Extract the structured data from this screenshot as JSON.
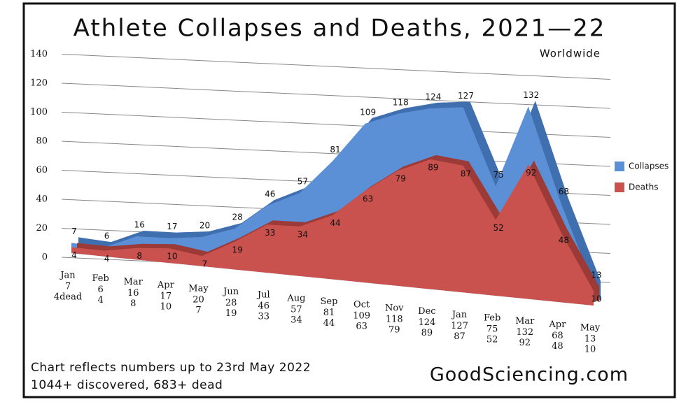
{
  "chart_data": {
    "type": "area",
    "title": "Athlete Collapses and Deaths, 2021—22",
    "subtitle": "Worldwide",
    "annotations": [
      "Chart reflects numbers up to 23rd May 2022",
      "1044+ discovered, 683+ dead",
      "GoodSciencing.com"
    ],
    "categories": [
      "Jan",
      "Feb",
      "Mar",
      "Apr",
      "May",
      "Jun",
      "Jul",
      "Aug",
      "Sep",
      "Oct",
      "Nov",
      "Dec",
      "Jan",
      "Feb",
      "Mar",
      "Apr",
      "May"
    ],
    "series": [
      {
        "name": "Collapses",
        "color": "#5b8fd6",
        "values": [
          7,
          6,
          16,
          17,
          20,
          28,
          46,
          57,
          81,
          109,
          118,
          124,
          127,
          75,
          132,
          68,
          13
        ]
      },
      {
        "name": "Deaths",
        "color": "#c9524e",
        "values": [
          4,
          4,
          8,
          10,
          7,
          19,
          33,
          34,
          44,
          63,
          79,
          89,
          87,
          52,
          92,
          48,
          10
        ],
        "value_labels": [
          "4dead",
          "4",
          "8",
          "10",
          "7",
          "19",
          "33",
          "34",
          "44",
          "63",
          "79",
          "89",
          "87",
          "52",
          "92",
          "48",
          "10"
        ]
      }
    ],
    "ylim": [
      0,
      140
    ],
    "yticks": [
      0,
      20,
      40,
      60,
      80,
      100,
      120,
      140
    ],
    "grid": true,
    "legend": "right"
  }
}
